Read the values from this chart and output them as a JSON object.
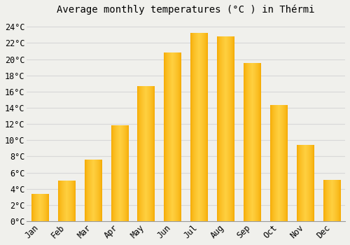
{
  "title": "Average monthly temperatures (°C ) in Thérmi",
  "months": [
    "Jan",
    "Feb",
    "Mar",
    "Apr",
    "May",
    "Jun",
    "Jul",
    "Aug",
    "Sep",
    "Oct",
    "Nov",
    "Dec"
  ],
  "values": [
    3.3,
    5.0,
    7.6,
    11.8,
    16.6,
    20.8,
    23.2,
    22.8,
    19.5,
    14.3,
    9.4,
    5.1
  ],
  "bar_color_left": "#F5A800",
  "bar_color_center": "#FFD040",
  "background_color": "#F0F0EC",
  "grid_color": "#D8D8D8",
  "spine_color": "#999999",
  "ylim": [
    0,
    25
  ],
  "yticks": [
    0,
    2,
    4,
    6,
    8,
    10,
    12,
    14,
    16,
    18,
    20,
    22,
    24
  ],
  "title_fontsize": 10,
  "tick_fontsize": 8.5,
  "bar_width": 0.65
}
